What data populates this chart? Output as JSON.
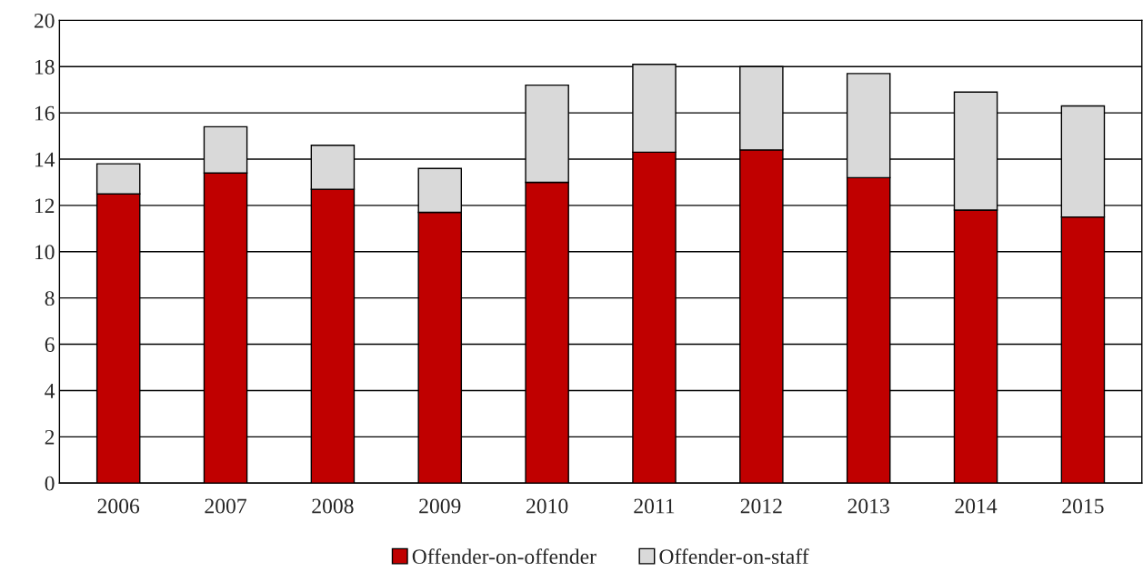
{
  "chart_data": {
    "type": "bar",
    "stacked": true,
    "categories": [
      "2006",
      "2007",
      "2008",
      "2009",
      "2010",
      "2011",
      "2012",
      "2013",
      "2014",
      "2015"
    ],
    "series": [
      {
        "name": "Offender-on-offender",
        "color": "#c00000",
        "values": [
          12.5,
          13.4,
          12.7,
          11.7,
          13.0,
          14.3,
          14.4,
          13.2,
          11.8,
          11.5
        ]
      },
      {
        "name": "Offender-on-staff",
        "color": "#d9d9d9",
        "values": [
          1.3,
          2.0,
          1.9,
          1.9,
          4.2,
          3.8,
          3.6,
          4.5,
          5.1,
          4.8
        ]
      }
    ],
    "ylim": [
      0,
      20
    ],
    "yticks": [
      0,
      2,
      4,
      6,
      8,
      10,
      12,
      14,
      16,
      18,
      20
    ],
    "grid": "y",
    "legend": "bottom"
  }
}
